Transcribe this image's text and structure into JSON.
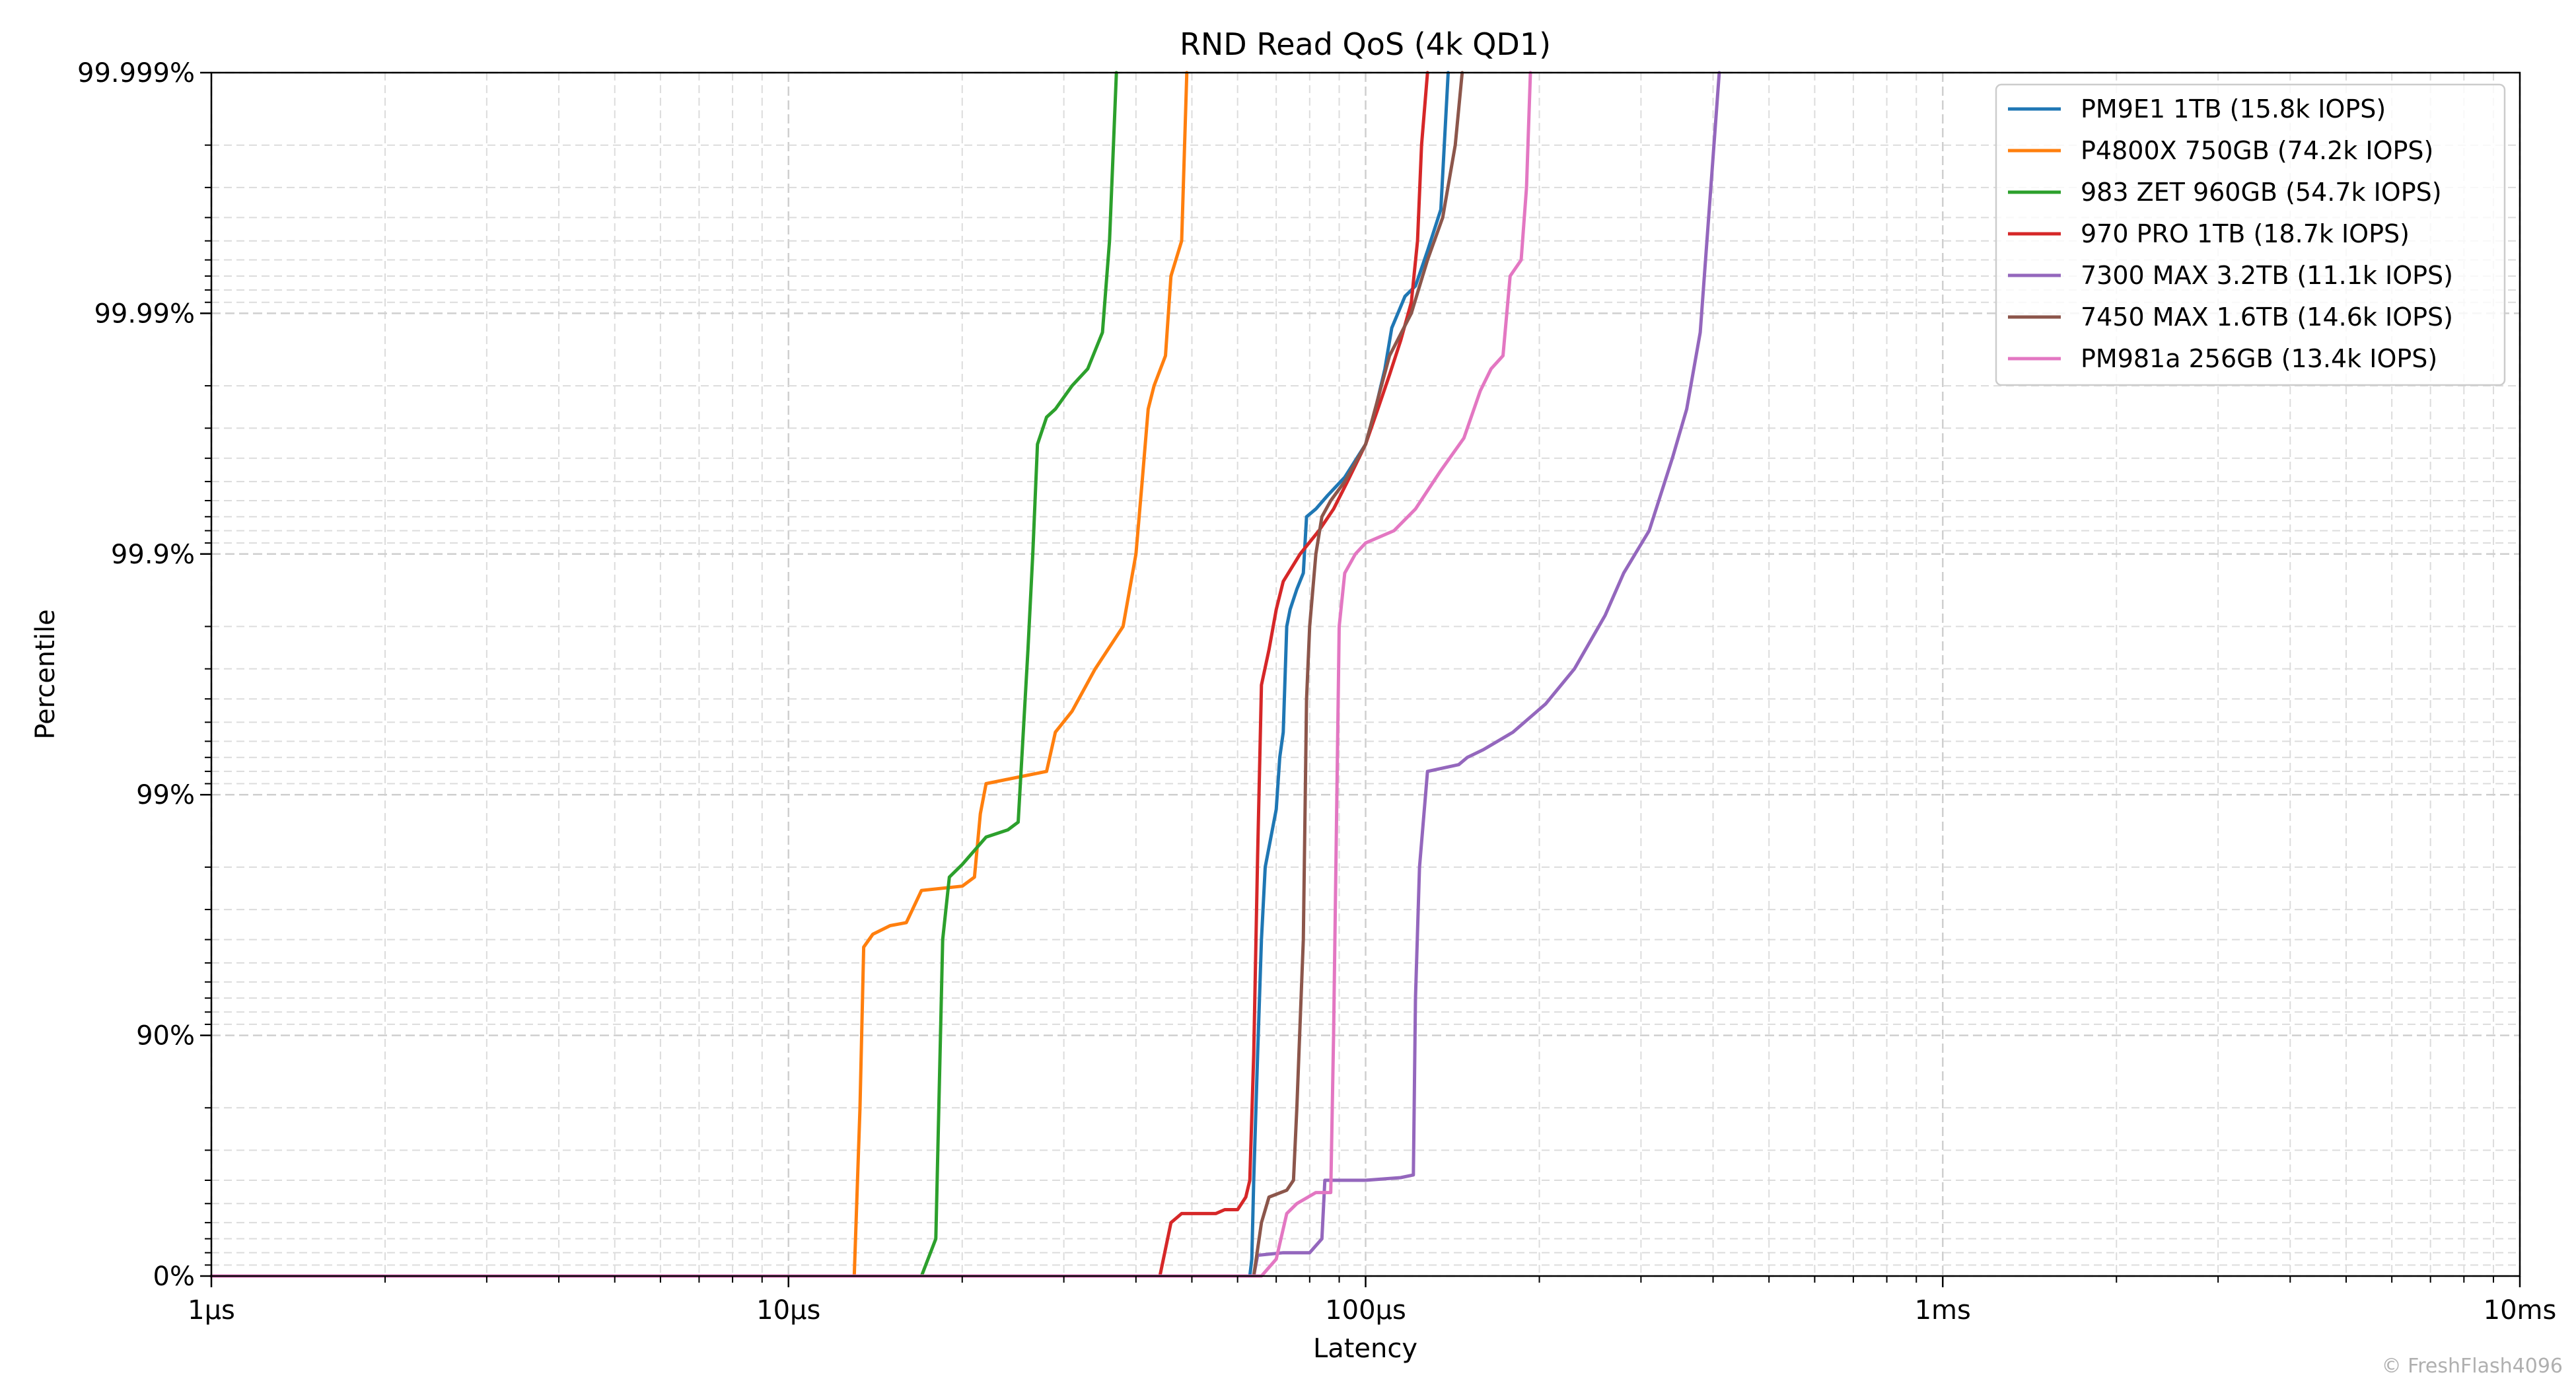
{
  "chart_data": {
    "type": "line",
    "title": "RND Read QoS (4k QD1)",
    "xlabel": "Latency",
    "ylabel": "Percentile",
    "x_scale": "log",
    "y_scale": "log-inverse-percentile",
    "xlim_us": [
      1,
      10000
    ],
    "ylim_percent": [
      0,
      99.999
    ],
    "x_ticks": [
      {
        "value_us": 1,
        "label": "1µs"
      },
      {
        "value_us": 10,
        "label": "10µs"
      },
      {
        "value_us": 100,
        "label": "100µs"
      },
      {
        "value_us": 1000,
        "label": "1ms"
      },
      {
        "value_us": 10000,
        "label": "10ms"
      }
    ],
    "y_ticks": [
      {
        "value": 0,
        "label": "0%"
      },
      {
        "value": 90,
        "label": "90%"
      },
      {
        "value": 99,
        "label": "99%"
      },
      {
        "value": 99.9,
        "label": "99.9%"
      },
      {
        "value": 99.99,
        "label": "99.99%"
      },
      {
        "value": 99.999,
        "label": "99.999%"
      }
    ],
    "grid": true,
    "legend_position": "top-right",
    "series": [
      {
        "name": "PM9E1 1TB (15.8k IOPS)",
        "color": "#1f77b4",
        "points": [
          [
            1,
            0
          ],
          [
            63,
            0
          ],
          [
            63.5,
            15
          ],
          [
            64,
            60
          ],
          [
            65,
            88
          ],
          [
            66,
            96
          ],
          [
            67,
            98
          ],
          [
            70,
            98.85
          ],
          [
            71,
            99.3
          ],
          [
            72,
            99.45
          ],
          [
            73,
            99.8
          ],
          [
            74,
            99.83
          ],
          [
            76,
            99.86
          ],
          [
            78,
            99.88
          ],
          [
            79,
            99.93
          ],
          [
            82,
            99.935
          ],
          [
            86,
            99.943
          ],
          [
            92,
            99.952
          ],
          [
            100,
            99.965
          ],
          [
            104,
            99.975
          ],
          [
            108,
            99.983
          ],
          [
            111,
            99.9885
          ],
          [
            117,
            99.9915
          ],
          [
            122,
            99.9923
          ],
          [
            128,
            99.9945
          ],
          [
            135,
            99.9963
          ],
          [
            139,
            99.999
          ]
        ]
      },
      {
        "name": "P4800X 750GB (74.2k IOPS)",
        "color": "#ff7f0e",
        "points": [
          [
            1,
            0
          ],
          [
            13,
            0
          ],
          [
            13.3,
            80
          ],
          [
            13.5,
            95.7
          ],
          [
            14,
            96.2
          ],
          [
            15,
            96.5
          ],
          [
            16,
            96.6
          ],
          [
            17,
            97.5
          ],
          [
            20,
            97.6
          ],
          [
            21,
            97.8
          ],
          [
            21.5,
            98.8
          ],
          [
            22,
            99.1
          ],
          [
            28,
            99.2
          ],
          [
            29,
            99.45
          ],
          [
            31,
            99.55
          ],
          [
            34,
            99.7
          ],
          [
            38,
            99.8
          ],
          [
            40,
            99.9
          ],
          [
            41,
            99.95
          ],
          [
            42,
            99.975
          ],
          [
            43,
            99.98
          ],
          [
            45,
            99.985
          ],
          [
            46,
            99.993
          ],
          [
            48,
            99.995
          ],
          [
            49,
            99.999
          ]
        ]
      },
      {
        "name": "983 ZET 960GB (54.7k IOPS)",
        "color": "#2ca02c",
        "points": [
          [
            1,
            0
          ],
          [
            17,
            0
          ],
          [
            18,
            30
          ],
          [
            18.5,
            96
          ],
          [
            19,
            97.8
          ],
          [
            20,
            98.05
          ],
          [
            22,
            98.5
          ],
          [
            24,
            98.6
          ],
          [
            25,
            98.7
          ],
          [
            26,
            99.75
          ],
          [
            26.5,
            99.9
          ],
          [
            27,
            99.965
          ],
          [
            28,
            99.973
          ],
          [
            29,
            99.975
          ],
          [
            31,
            99.98
          ],
          [
            33,
            99.983
          ],
          [
            35,
            99.988
          ],
          [
            36,
            99.995
          ],
          [
            37,
            99.999
          ]
        ]
      },
      {
        "name": "970 PRO 1TB (18.7k IOPS)",
        "color": "#d62728",
        "points": [
          [
            1,
            0
          ],
          [
            44,
            0
          ],
          [
            46,
            40
          ],
          [
            48,
            45
          ],
          [
            55,
            45
          ],
          [
            57,
            47
          ],
          [
            60,
            47
          ],
          [
            62,
            53
          ],
          [
            63,
            60
          ],
          [
            64,
            88
          ],
          [
            65,
            98.2
          ],
          [
            66,
            99.65
          ],
          [
            68,
            99.75
          ],
          [
            70,
            99.83
          ],
          [
            72,
            99.87
          ],
          [
            77,
            99.9
          ],
          [
            83,
            99.92
          ],
          [
            88,
            99.935
          ],
          [
            93,
            99.95
          ],
          [
            100,
            99.965
          ],
          [
            105,
            99.975
          ],
          [
            110,
            99.982
          ],
          [
            115,
            99.987
          ],
          [
            120,
            99.991
          ],
          [
            123,
            99.995
          ],
          [
            125,
            99.998
          ],
          [
            128,
            99.999
          ]
        ]
      },
      {
        "name": "7300 MAX 3.2TB (11.1k IOPS)",
        "color": "#9467bd",
        "points": [
          [
            1,
            0
          ],
          [
            64,
            0
          ],
          [
            65,
            18
          ],
          [
            72,
            20
          ],
          [
            80,
            20
          ],
          [
            84,
            30
          ],
          [
            85,
            60
          ],
          [
            100,
            60
          ],
          [
            115,
            61
          ],
          [
            121,
            62
          ],
          [
            122,
            93
          ],
          [
            124,
            98
          ],
          [
            128,
            99.2
          ],
          [
            145,
            99.25
          ],
          [
            150,
            99.3
          ],
          [
            160,
            99.35
          ],
          [
            180,
            99.45
          ],
          [
            205,
            99.58
          ],
          [
            230,
            99.7
          ],
          [
            260,
            99.82
          ],
          [
            280,
            99.88
          ],
          [
            310,
            99.92
          ],
          [
            340,
            99.96
          ],
          [
            360,
            99.975
          ],
          [
            380,
            99.988
          ],
          [
            410,
            99.999
          ]
        ]
      },
      {
        "name": "7450 MAX 1.6TB (14.6k IOPS)",
        "color": "#8c564b",
        "points": [
          [
            1,
            0
          ],
          [
            64,
            0
          ],
          [
            66,
            40
          ],
          [
            68,
            53
          ],
          [
            73,
            56
          ],
          [
            75,
            60
          ],
          [
            76,
            80
          ],
          [
            78,
            96
          ],
          [
            79,
            99.6
          ],
          [
            80,
            99.8
          ],
          [
            82,
            99.9
          ],
          [
            84,
            99.93
          ],
          [
            87,
            99.94
          ],
          [
            92,
            99.95
          ],
          [
            100,
            99.965
          ],
          [
            110,
            99.985
          ],
          [
            120,
            99.99
          ],
          [
            128,
            99.994
          ],
          [
            136,
            99.996
          ],
          [
            143,
            99.998
          ],
          [
            147,
            99.999
          ]
        ]
      },
      {
        "name": "PM981a 256GB (13.4k IOPS)",
        "color": "#e377c2",
        "points": [
          [
            1,
            0
          ],
          [
            66,
            0
          ],
          [
            70,
            15
          ],
          [
            73,
            45
          ],
          [
            76,
            50
          ],
          [
            82,
            55
          ],
          [
            87,
            55
          ],
          [
            88,
            90
          ],
          [
            90,
            99.8
          ],
          [
            92,
            99.88
          ],
          [
            96,
            99.9
          ],
          [
            100,
            99.91
          ],
          [
            112,
            99.92
          ],
          [
            122,
            99.935
          ],
          [
            135,
            99.955
          ],
          [
            148,
            99.967
          ],
          [
            158,
            99.979
          ],
          [
            165,
            99.983
          ],
          [
            173,
            99.985
          ],
          [
            178,
            99.993
          ],
          [
            186,
            99.994
          ],
          [
            190,
            99.997
          ],
          [
            193,
            99.999
          ]
        ]
      }
    ]
  },
  "watermark": "© FreshFlash4096"
}
